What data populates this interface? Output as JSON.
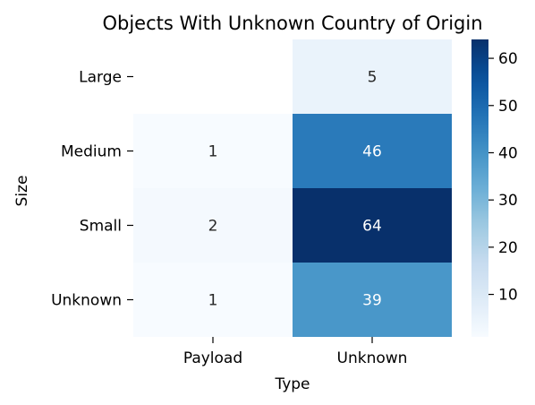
{
  "chart_data": {
    "type": "heatmap",
    "title": "Objects With Unknown Country of Origin",
    "xlabel": "Type",
    "ylabel": "Size",
    "x_categories": [
      "Payload",
      "Unknown"
    ],
    "y_categories": [
      "Large",
      "Medium",
      "Small",
      "Unknown"
    ],
    "values": [
      [
        null,
        5
      ],
      [
        1,
        46
      ],
      [
        2,
        64
      ],
      [
        1,
        39
      ]
    ],
    "colormap": "Blues",
    "colorbar": {
      "range": [
        1,
        64
      ],
      "ticks": [
        10,
        20,
        30,
        40,
        50,
        60
      ]
    },
    "annotations": true,
    "grid": false
  }
}
